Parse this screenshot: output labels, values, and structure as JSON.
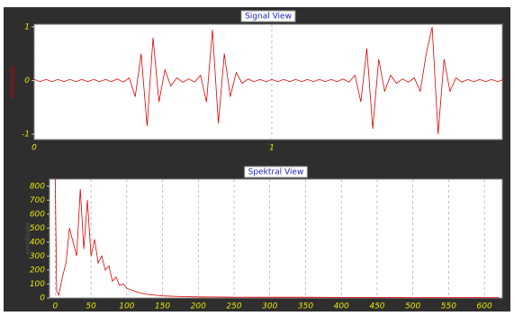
{
  "chart_data": [
    {
      "type": "line",
      "title": "Signal View",
      "y_label": "Amplitudo",
      "color": "#e00000",
      "grid": true,
      "xlim": [
        0,
        1.97
      ],
      "ylim": [
        -1.1,
        1.05
      ],
      "xticks": [
        0,
        1
      ],
      "yticks": [
        -1,
        0,
        1
      ],
      "x": [
        0,
        0.025,
        0.05,
        0.075,
        0.1,
        0.125,
        0.15,
        0.175,
        0.2,
        0.225,
        0.25,
        0.275,
        0.3,
        0.325,
        0.35,
        0.375,
        0.4,
        0.425,
        0.45,
        0.475,
        0.5,
        0.525,
        0.55,
        0.575,
        0.6,
        0.625,
        0.65,
        0.675,
        0.7,
        0.725,
        0.75,
        0.775,
        0.8,
        0.825,
        0.85,
        0.875,
        0.9,
        0.925,
        0.95,
        0.975,
        1,
        1.025,
        1.05,
        1.075,
        1.1,
        1.125,
        1.15,
        1.175,
        1.2,
        1.225,
        1.25,
        1.275,
        1.3,
        1.325,
        1.35,
        1.375,
        1.4,
        1.425,
        1.45,
        1.475,
        1.5,
        1.525,
        1.55,
        1.575,
        1.6,
        1.625,
        1.65,
        1.675,
        1.7,
        1.725,
        1.75,
        1.775,
        1.8,
        1.825,
        1.85,
        1.875,
        1.9,
        1.925,
        1.95,
        1.975
      ],
      "series": [
        {
          "values": [
            0.02,
            -0.02,
            0.02,
            -0.02,
            0.02,
            -0.02,
            0.02,
            -0.02,
            0.02,
            -0.02,
            0.02,
            -0.02,
            0.02,
            -0.02,
            0.03,
            -0.03,
            0.05,
            -0.3,
            0.5,
            -0.85,
            0.8,
            -0.4,
            0.2,
            -0.1,
            0.05,
            -0.03,
            0.03,
            -0.03,
            0.1,
            -0.4,
            0.95,
            -0.8,
            0.5,
            -0.3,
            0.15,
            -0.05,
            0.03,
            -0.02,
            0.02,
            -0.02,
            0.02,
            -0.02,
            0.02,
            -0.02,
            0.02,
            -0.02,
            0.02,
            -0.02,
            0.02,
            -0.02,
            0.02,
            -0.02,
            0.03,
            -0.03,
            0.1,
            -0.4,
            0.6,
            -0.9,
            0.4,
            -0.2,
            0.1,
            -0.05,
            0.03,
            -0.03,
            0.05,
            -0.2,
            0.5,
            1,
            -1,
            0.4,
            -0.2,
            0.05,
            -0.03,
            0.02,
            -0.02,
            0.02,
            -0.02,
            0.02,
            -0.02,
            0.02
          ]
        }
      ]
    },
    {
      "type": "line",
      "title": "Spektral View",
      "y_label": "Amplitudo",
      "color": "#e00000",
      "grid": true,
      "xlim": [
        -8,
        625
      ],
      "ylim": [
        0,
        850
      ],
      "xticks": [
        0,
        50,
        100,
        150,
        200,
        250,
        300,
        350,
        400,
        450,
        500,
        550,
        600
      ],
      "yticks": [
        0,
        100,
        200,
        300,
        400,
        500,
        600,
        700,
        800
      ],
      "x": [
        0,
        2,
        5,
        10,
        15,
        20,
        25,
        30,
        35,
        40,
        45,
        50,
        55,
        60,
        65,
        70,
        75,
        80,
        85,
        90,
        95,
        100,
        110,
        120,
        130,
        140,
        150,
        175,
        200,
        250,
        300,
        350,
        400,
        450,
        500,
        550,
        600,
        620
      ],
      "series": [
        {
          "values": [
            850,
            50,
            20,
            150,
            250,
            500,
            400,
            300,
            780,
            350,
            700,
            300,
            420,
            250,
            300,
            200,
            230,
            120,
            150,
            90,
            100,
            70,
            50,
            35,
            25,
            20,
            15,
            10,
            8,
            6,
            5,
            5,
            4,
            4,
            3,
            3,
            3,
            3
          ]
        }
      ]
    }
  ]
}
